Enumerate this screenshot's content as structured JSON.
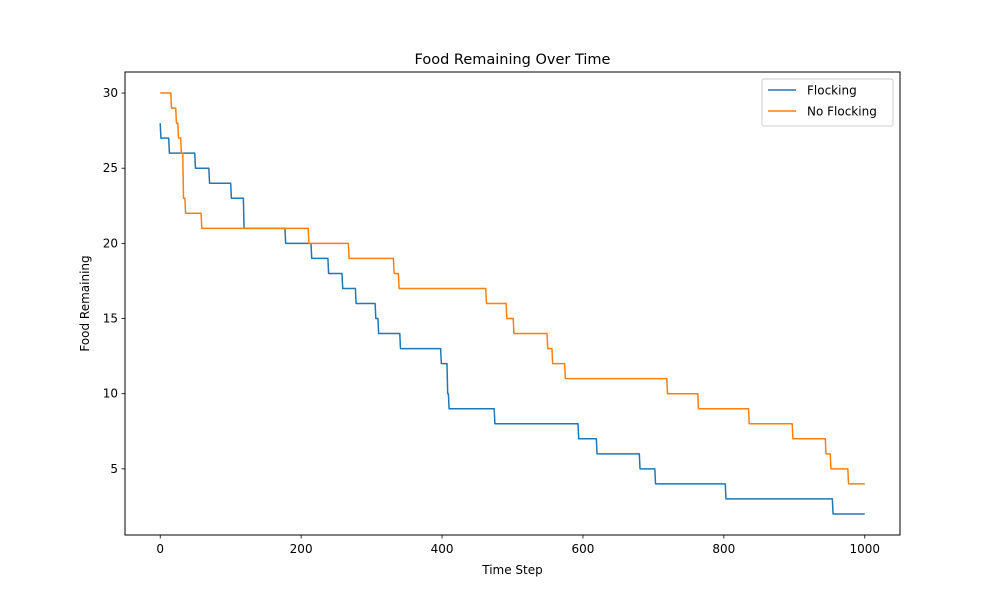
{
  "chart_data": {
    "type": "line",
    "title": "Food Remaining Over Time",
    "xlabel": "Time Step",
    "ylabel": "Food Remaining",
    "xlim": [
      -50,
      1050
    ],
    "ylim": [
      0.6,
      31.4
    ],
    "xticks": [
      0,
      200,
      400,
      600,
      800,
      1000
    ],
    "yticks": [
      5,
      10,
      15,
      20,
      25,
      30
    ],
    "legend_position": "top-right",
    "series": [
      {
        "name": "Flocking",
        "color": "#1f77b4",
        "points": [
          [
            0,
            28
          ],
          [
            1,
            27
          ],
          [
            12,
            27
          ],
          [
            13,
            26
          ],
          [
            49,
            26
          ],
          [
            50,
            25
          ],
          [
            69,
            25
          ],
          [
            70,
            24
          ],
          [
            100,
            24
          ],
          [
            101,
            23
          ],
          [
            118,
            23
          ],
          [
            119,
            21
          ],
          [
            177,
            21
          ],
          [
            178,
            20
          ],
          [
            214,
            20
          ],
          [
            215,
            19
          ],
          [
            238,
            19
          ],
          [
            239,
            18
          ],
          [
            258,
            18
          ],
          [
            259,
            17
          ],
          [
            277,
            17
          ],
          [
            278,
            16
          ],
          [
            305,
            16
          ],
          [
            306,
            15
          ],
          [
            309,
            15
          ],
          [
            310,
            14
          ],
          [
            340,
            14
          ],
          [
            341,
            13
          ],
          [
            398,
            13
          ],
          [
            399,
            12
          ],
          [
            407,
            12
          ],
          [
            408,
            10
          ],
          [
            409,
            10
          ],
          [
            410,
            9
          ],
          [
            474,
            9
          ],
          [
            475,
            8
          ],
          [
            593,
            8
          ],
          [
            594,
            7
          ],
          [
            619,
            7
          ],
          [
            620,
            6
          ],
          [
            680,
            6
          ],
          [
            681,
            5
          ],
          [
            702,
            5
          ],
          [
            703,
            4
          ],
          [
            802,
            4
          ],
          [
            803,
            3
          ],
          [
            954,
            3
          ],
          [
            955,
            2
          ],
          [
            1000,
            2
          ]
        ]
      },
      {
        "name": "No Flocking",
        "color": "#ff7f0e",
        "points": [
          [
            0,
            30
          ],
          [
            15,
            30
          ],
          [
            16,
            29
          ],
          [
            22,
            29
          ],
          [
            23,
            28
          ],
          [
            25,
            28
          ],
          [
            26,
            27
          ],
          [
            29,
            27
          ],
          [
            30,
            26
          ],
          [
            32,
            26
          ],
          [
            33,
            23
          ],
          [
            35,
            23
          ],
          [
            36,
            22
          ],
          [
            58,
            22
          ],
          [
            59,
            21
          ],
          [
            210,
            21
          ],
          [
            211,
            20
          ],
          [
            267,
            20
          ],
          [
            268,
            19
          ],
          [
            331,
            19
          ],
          [
            332,
            18
          ],
          [
            338,
            18
          ],
          [
            339,
            17
          ],
          [
            462,
            17
          ],
          [
            463,
            16
          ],
          [
            491,
            16
          ],
          [
            492,
            15
          ],
          [
            501,
            15
          ],
          [
            502,
            14
          ],
          [
            549,
            14
          ],
          [
            550,
            13
          ],
          [
            556,
            13
          ],
          [
            557,
            12
          ],
          [
            574,
            12
          ],
          [
            575,
            11
          ],
          [
            719,
            11
          ],
          [
            720,
            10
          ],
          [
            763,
            10
          ],
          [
            764,
            9
          ],
          [
            835,
            9
          ],
          [
            836,
            8
          ],
          [
            897,
            8
          ],
          [
            898,
            7
          ],
          [
            944,
            7
          ],
          [
            945,
            6
          ],
          [
            951,
            6
          ],
          [
            952,
            5
          ],
          [
            976,
            5
          ],
          [
            977,
            4
          ],
          [
            1000,
            4
          ]
        ]
      }
    ]
  }
}
